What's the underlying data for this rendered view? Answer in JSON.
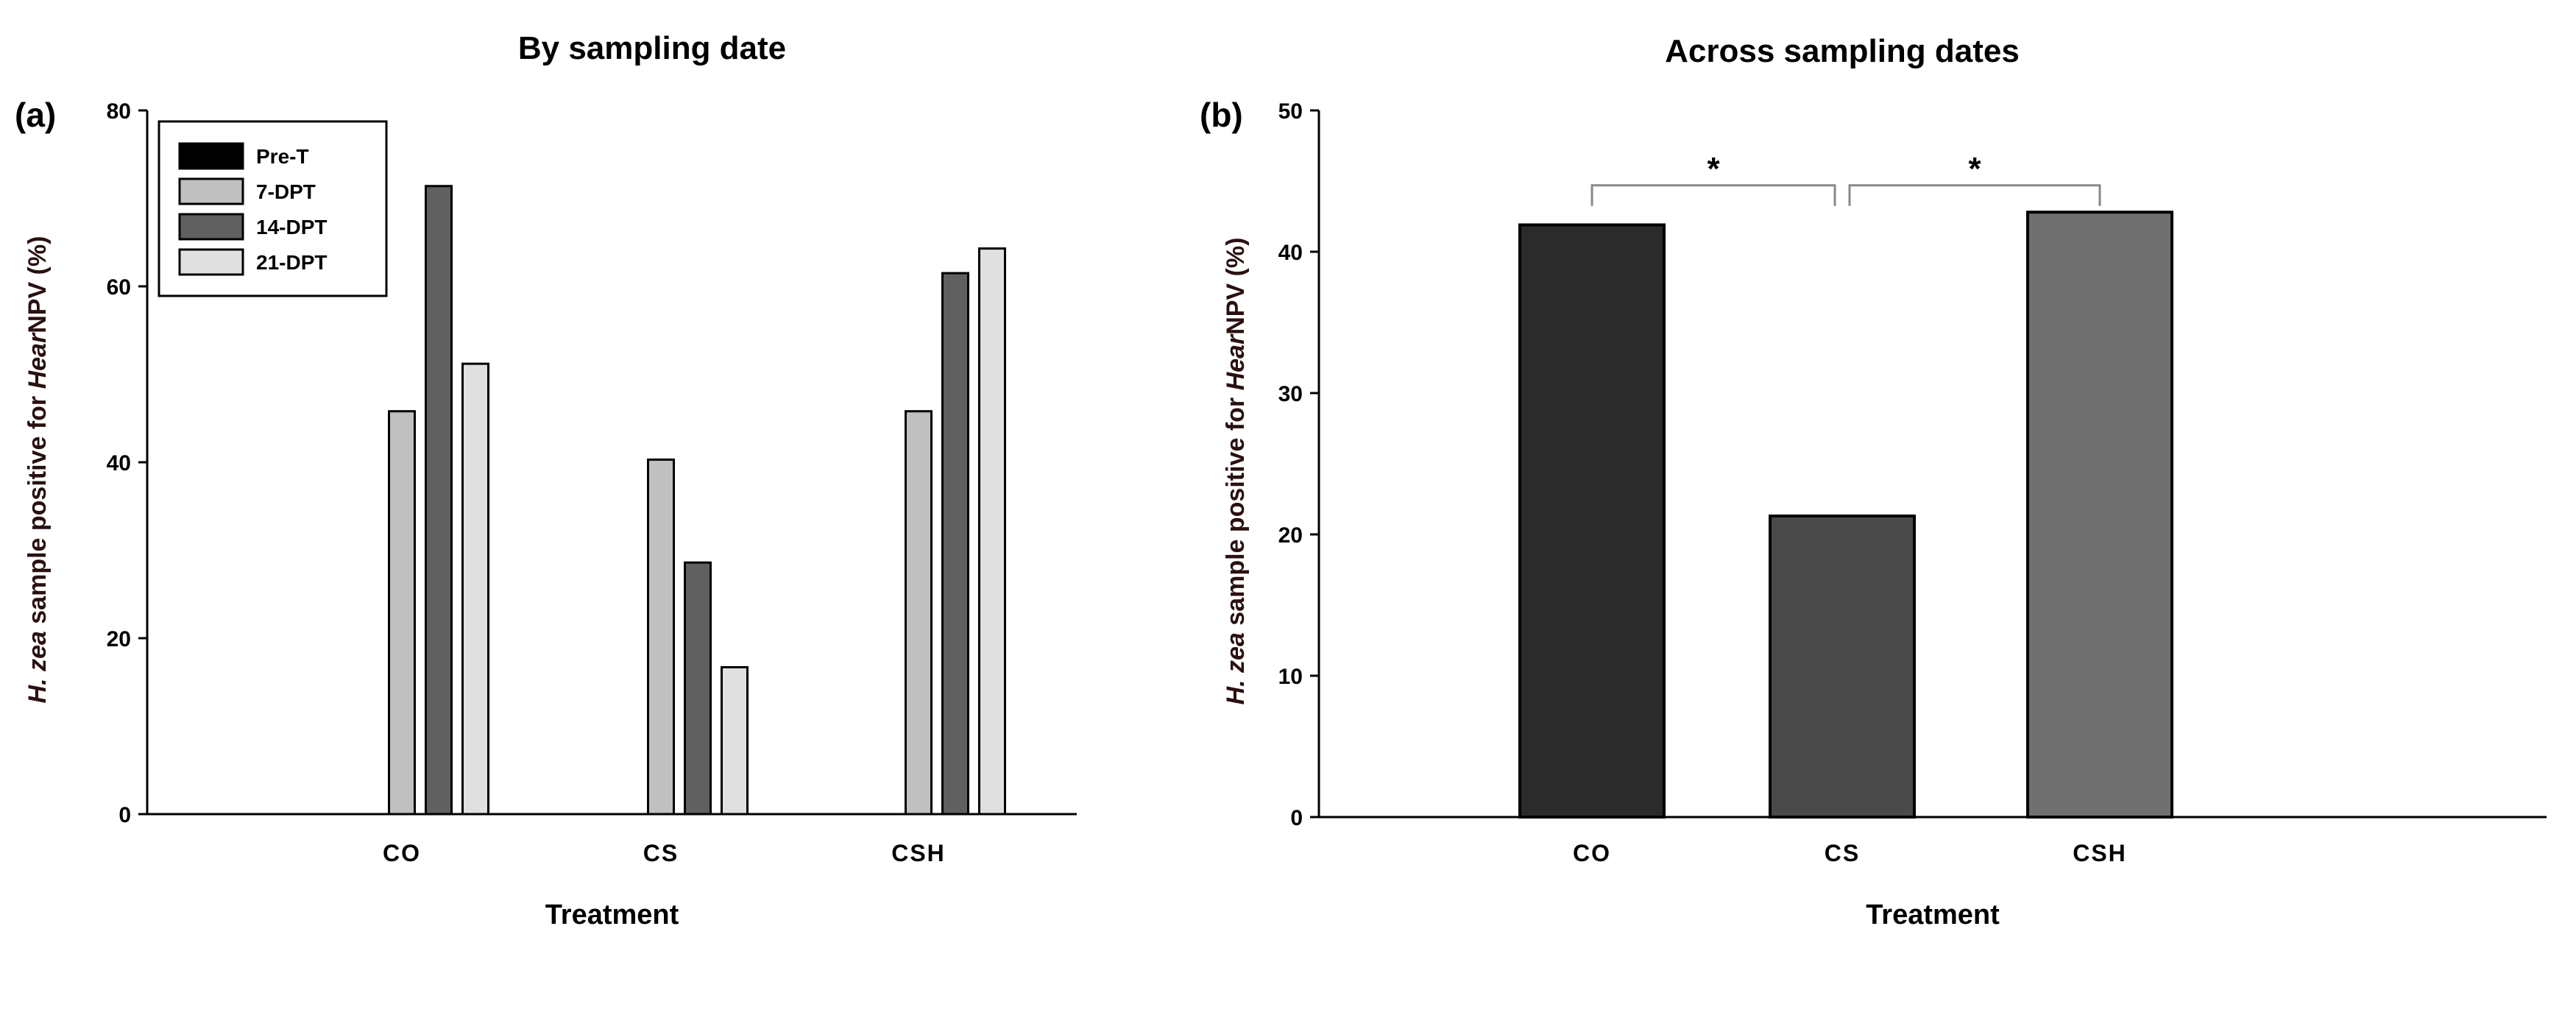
{
  "chart_data": [
    {
      "type": "bar",
      "panel_label": "(a)",
      "title": "By sampling date",
      "xlabel": "Treatment",
      "ylabel_parts": [
        "H. zea",
        " sample positive for ",
        "Hear",
        "NPV (%)"
      ],
      "ylim": [
        0,
        80
      ],
      "yticks": [
        0,
        20,
        40,
        60,
        80
      ],
      "categories": [
        "CO",
        "CS",
        "CSH"
      ],
      "legend_position": "top-left",
      "series": [
        {
          "name": "Pre-T",
          "color": "#000000",
          "values": [
            0,
            0,
            0
          ]
        },
        {
          "name": "7-DPT",
          "color": "#c0c0c0",
          "values": [
            45.8,
            40.3,
            45.8
          ]
        },
        {
          "name": "14-DPT",
          "color": "#606060",
          "values": [
            71.4,
            28.6,
            61.5
          ]
        },
        {
          "name": "21-DPT",
          "color": "#e0e0e0",
          "values": [
            51.2,
            16.7,
            64.3
          ]
        }
      ]
    },
    {
      "type": "bar",
      "panel_label": "(b)",
      "title": "Across sampling dates",
      "xlabel": "Treatment",
      "ylabel_parts": [
        "H. zea",
        " sample positive for ",
        "Hear",
        "NPV (%)"
      ],
      "ylim": [
        0,
        50
      ],
      "yticks": [
        0,
        10,
        20,
        30,
        40,
        50
      ],
      "categories": [
        "CO",
        "CS",
        "CSH"
      ],
      "values": [
        41.9,
        21.3,
        42.8
      ],
      "colors": [
        "#2b2b2b",
        "#4a4a4a",
        "#707070"
      ],
      "annotations": [
        {
          "text": "*",
          "from": "CO",
          "to": "CS",
          "y": 44.7
        },
        {
          "text": "*",
          "from": "CS",
          "to": "CSH",
          "y": 44.7
        }
      ]
    }
  ]
}
